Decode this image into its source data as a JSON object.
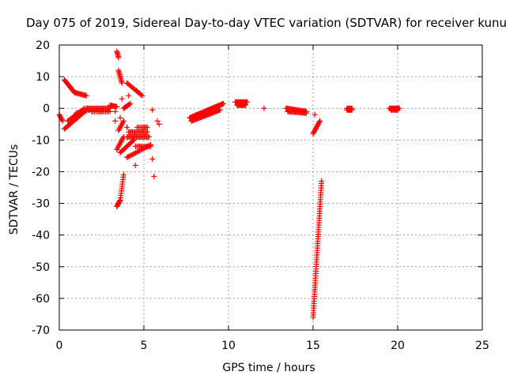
{
  "chart_data": {
    "type": "scatter",
    "title": "Day 075 of 2019, Sidereal Day-to-day VTEC variation (SDTVAR) for receiver kunu",
    "xlabel": "GPS time / hours",
    "ylabel": "SDTVAR / TECUs",
    "xlim": [
      0,
      25
    ],
    "ylim": [
      -70,
      20
    ],
    "xticks": [
      "0",
      "5",
      "10",
      "15",
      "20",
      "25"
    ],
    "yticks": [
      "20",
      "10",
      "0",
      "-10",
      "-20",
      "-30",
      "-40",
      "-50",
      "-60",
      "-70"
    ],
    "grid": true,
    "marker": "+",
    "color": "#ff0000",
    "segments": [
      {
        "x0": 0.0,
        "y0": -2.0,
        "x1": 0.2,
        "y1": -4.0,
        "n": 6
      },
      {
        "x0": 0.3,
        "y0": 9.0,
        "x1": 0.9,
        "y1": 5.0,
        "n": 14
      },
      {
        "x0": 0.9,
        "y0": 5.0,
        "x1": 1.6,
        "y1": 4.0,
        "n": 12
      },
      {
        "x0": 0.3,
        "y0": -6.5,
        "x1": 1.5,
        "y1": -1.0,
        "n": 20
      },
      {
        "x0": 0.5,
        "y0": -4.0,
        "x1": 1.5,
        "y1": 0.0,
        "n": 16
      },
      {
        "x0": 1.0,
        "y0": -1.5,
        "x1": 1.8,
        "y1": -0.5,
        "n": 10
      },
      {
        "x0": 1.6,
        "y0": 0.0,
        "x1": 3.0,
        "y1": 0.0,
        "n": 22
      },
      {
        "x0": 1.9,
        "y0": -1.0,
        "x1": 3.0,
        "y1": -1.0,
        "n": 14
      },
      {
        "x0": 3.0,
        "y0": 1.0,
        "x1": 3.4,
        "y1": 0.5,
        "n": 8
      },
      {
        "x0": 3.4,
        "y0": 18.0,
        "x1": 3.5,
        "y1": 16.0,
        "n": 6
      },
      {
        "x0": 3.5,
        "y0": 12.0,
        "x1": 3.7,
        "y1": 8.0,
        "n": 10
      },
      {
        "x0": 3.4,
        "y0": -31.0,
        "x1": 3.6,
        "y1": -29.0,
        "n": 8
      },
      {
        "x0": 3.6,
        "y0": -29.0,
        "x1": 3.8,
        "y1": -21.0,
        "n": 12
      },
      {
        "x0": 3.4,
        "y0": -13.0,
        "x1": 3.8,
        "y1": -9.0,
        "n": 10
      },
      {
        "x0": 3.5,
        "y0": -7.0,
        "x1": 3.8,
        "y1": -4.0,
        "n": 8
      },
      {
        "x0": 3.6,
        "y0": -14.0,
        "x1": 4.4,
        "y1": -10.0,
        "n": 14
      },
      {
        "x0": 3.8,
        "y0": 0.0,
        "x1": 4.2,
        "y1": 1.5,
        "n": 8
      },
      {
        "x0": 4.0,
        "y0": 8.0,
        "x1": 4.9,
        "y1": 4.0,
        "n": 14
      },
      {
        "x0": 4.0,
        "y0": -9.0,
        "x1": 5.3,
        "y1": -9.0,
        "n": 20
      },
      {
        "x0": 4.1,
        "y0": -7.5,
        "x1": 5.2,
        "y1": -7.5,
        "n": 16
      },
      {
        "x0": 4.0,
        "y0": -15.5,
        "x1": 5.4,
        "y1": -11.5,
        "n": 20
      },
      {
        "x0": 4.5,
        "y0": -12.0,
        "x1": 5.4,
        "y1": -12.0,
        "n": 12
      },
      {
        "x0": 4.6,
        "y0": -6.0,
        "x1": 5.2,
        "y1": -6.0,
        "n": 8
      },
      {
        "x0": 7.7,
        "y0": -3.0,
        "x1": 9.7,
        "y1": 1.5,
        "n": 40
      },
      {
        "x0": 7.8,
        "y0": -4.0,
        "x1": 9.5,
        "y1": -0.5,
        "n": 30
      },
      {
        "x0": 10.4,
        "y0": 2.0,
        "x1": 11.1,
        "y1": 2.0,
        "n": 14
      },
      {
        "x0": 10.5,
        "y0": 1.0,
        "x1": 11.0,
        "y1": 1.0,
        "n": 10
      },
      {
        "x0": 13.4,
        "y0": 0.0,
        "x1": 14.6,
        "y1": -1.0,
        "n": 22
      },
      {
        "x0": 13.5,
        "y0": -1.0,
        "x1": 14.6,
        "y1": -1.5,
        "n": 18
      },
      {
        "x0": 15.0,
        "y0": -8.0,
        "x1": 15.4,
        "y1": -4.0,
        "n": 12
      },
      {
        "x0": 15.0,
        "y0": -66.0,
        "x1": 15.5,
        "y1": -23.0,
        "n": 60
      },
      {
        "x0": 17.0,
        "y0": -0.5,
        "x1": 17.3,
        "y1": -0.5,
        "n": 8
      },
      {
        "x0": 17.0,
        "y0": 0.0,
        "x1": 17.3,
        "y1": 0.0,
        "n": 6
      },
      {
        "x0": 19.5,
        "y0": 0.0,
        "x1": 20.1,
        "y1": 0.0,
        "n": 12
      },
      {
        "x0": 19.6,
        "y0": -0.5,
        "x1": 20.0,
        "y1": -0.5,
        "n": 8
      }
    ],
    "points": [
      [
        3.3,
        -4.0
      ],
      [
        3.6,
        -3.0
      ],
      [
        4.1,
        4.0
      ],
      [
        4.6,
        5.5
      ],
      [
        4.5,
        -18.0
      ],
      [
        4.0,
        -6.0
      ],
      [
        5.5,
        -0.5
      ],
      [
        5.5,
        -16.0
      ],
      [
        5.6,
        -21.5
      ],
      [
        5.8,
        -4.0
      ],
      [
        5.9,
        -5.0
      ],
      [
        12.1,
        0.0
      ],
      [
        15.1,
        -2.0
      ],
      [
        3.3,
        -1.0
      ],
      [
        3.7,
        3.0
      ]
    ]
  }
}
